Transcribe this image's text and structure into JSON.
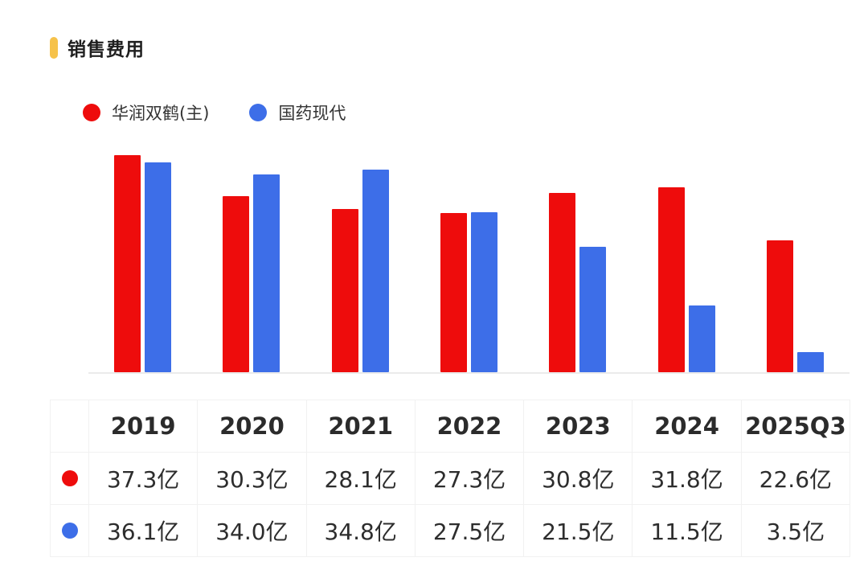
{
  "page_title": "销售费用",
  "accent_color": "#F6C24A",
  "unit_suffix": "亿",
  "chart_data": {
    "type": "bar",
    "title": "销售费用",
    "categories": [
      "2019",
      "2020",
      "2021",
      "2022",
      "2023",
      "2024",
      "2025Q3"
    ],
    "series": [
      {
        "name": "华润双鹤(主)",
        "color": "#EE0C0C",
        "values": [
          37.3,
          30.3,
          28.1,
          27.3,
          30.8,
          31.8,
          22.6
        ]
      },
      {
        "name": "国药现代",
        "color": "#3D6EE8",
        "values": [
          36.1,
          34.0,
          34.8,
          27.5,
          21.5,
          11.5,
          3.5
        ]
      }
    ],
    "ylabel": "",
    "xlabel": "",
    "ylim": [
      0,
      37.3
    ],
    "grid": false,
    "legend_position": "top-left",
    "axis_line_color": "#ebebeb"
  },
  "table": {
    "header": [
      "",
      "2019",
      "2020",
      "2021",
      "2022",
      "2023",
      "2024",
      "2025Q3"
    ],
    "rows": [
      {
        "series": "华润双鹤(主)",
        "dot_color": "#EE0C0C",
        "cells": [
          "37.3亿",
          "30.3亿",
          "28.1亿",
          "27.3亿",
          "30.8亿",
          "31.8亿",
          "22.6亿"
        ]
      },
      {
        "series": "国药现代",
        "dot_color": "#3D6EE8",
        "cells": [
          "36.1亿",
          "34.0亿",
          "34.8亿",
          "27.5亿",
          "21.5亿",
          "11.5亿",
          "3.5亿"
        ]
      }
    ]
  }
}
